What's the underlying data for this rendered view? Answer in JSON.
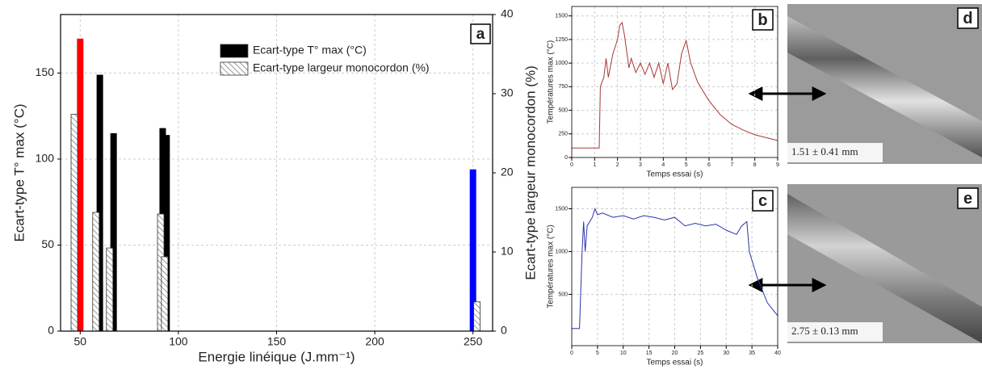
{
  "chart_data": [
    {
      "type": "bar",
      "panel": "a",
      "xlabel": "Energie linéique (J.mm⁻¹)",
      "ylabel": "Ecart-type T° max (°C)",
      "y2label": "Ecart-type largeur monocordon (%)",
      "xlim": [
        40,
        260
      ],
      "xticks": [
        50,
        100,
        150,
        200,
        250
      ],
      "ylim": [
        0,
        184
      ],
      "yticks": [
        0,
        50,
        100,
        150
      ],
      "y2lim": [
        0,
        40
      ],
      "y2ticks": [
        0,
        10,
        20,
        30,
        40
      ],
      "grid": true,
      "legend": "upper center",
      "series": [
        {
          "name": "Ecart-type T° max (°C)",
          "color": "#000000",
          "point_colors": [
            "#ff0000",
            "#000000",
            "#000000",
            "#000000",
            "#000000",
            "#0000ff"
          ],
          "x": [
            50,
            60,
            67,
            92,
            94,
            250
          ],
          "values": [
            170,
            149,
            115,
            118,
            114,
            94
          ]
        },
        {
          "name": "Ecart-type largeur monocordon (%)",
          "color": "#ffffff",
          "hatch": true,
          "axis": "y2",
          "x": [
            47,
            58,
            65,
            91,
            93,
            252
          ],
          "values": [
            27.4,
            15,
            10.5,
            14.8,
            9.4,
            3.7
          ]
        }
      ]
    },
    {
      "type": "line",
      "panel": "b",
      "xlabel": "Temps essai (s)",
      "ylabel": "Températures max (°C)",
      "xlim": [
        0,
        9
      ],
      "xticks": [
        0,
        1,
        2,
        3,
        4,
        5,
        6,
        7,
        8,
        9
      ],
      "ylim": [
        0,
        1600
      ],
      "yticks": [
        0,
        250,
        500,
        750,
        1000,
        1250,
        1500
      ],
      "grid": true,
      "series": [
        {
          "color": "#a83838",
          "x": [
            0,
            1.2,
            1.25,
            1.4,
            1.5,
            1.6,
            1.8,
            2.0,
            2.1,
            2.2,
            2.3,
            2.5,
            2.6,
            2.8,
            3.0,
            3.2,
            3.4,
            3.6,
            3.8,
            4.0,
            4.2,
            4.4,
            4.6,
            4.8,
            5.0,
            5.2,
            5.5,
            6,
            6.5,
            7,
            7.5,
            8,
            9
          ],
          "values": [
            100,
            100,
            750,
            850,
            1050,
            850,
            1100,
            1250,
            1400,
            1430,
            1300,
            950,
            1050,
            900,
            1000,
            880,
            1000,
            850,
            1000,
            780,
            1000,
            720,
            780,
            1100,
            1240,
            1000,
            800,
            600,
            450,
            350,
            290,
            240,
            180
          ]
        }
      ]
    },
    {
      "type": "line",
      "panel": "c",
      "xlabel": "Temps essai (s)",
      "ylabel": "Températures max (°C)",
      "xlim": [
        0,
        40
      ],
      "xticks": [
        0,
        5,
        10,
        15,
        20,
        25,
        30,
        35,
        40
      ],
      "ylim": [
        -100,
        1750
      ],
      "yticks": [
        500,
        1000,
        1500
      ],
      "grid": true,
      "series": [
        {
          "color": "#2a35a8",
          "x": [
            0,
            1.5,
            2,
            2.3,
            2.6,
            3,
            4,
            4.5,
            5,
            6,
            8,
            10,
            12,
            14,
            16,
            18,
            20,
            22,
            24,
            26,
            28,
            30,
            32,
            33,
            34,
            34.5,
            36,
            38,
            40
          ],
          "values": [
            100,
            100,
            1000,
            1350,
            1000,
            1300,
            1400,
            1500,
            1430,
            1450,
            1400,
            1420,
            1380,
            1420,
            1400,
            1370,
            1400,
            1300,
            1330,
            1300,
            1320,
            1250,
            1200,
            1300,
            1350,
            1000,
            700,
            400,
            250
          ]
        }
      ]
    }
  ],
  "images": [
    {
      "panel": "d",
      "caption": "1.51 ± 0.41 mm"
    },
    {
      "panel": "e",
      "caption": "2.75 ± 0.13 mm"
    }
  ]
}
